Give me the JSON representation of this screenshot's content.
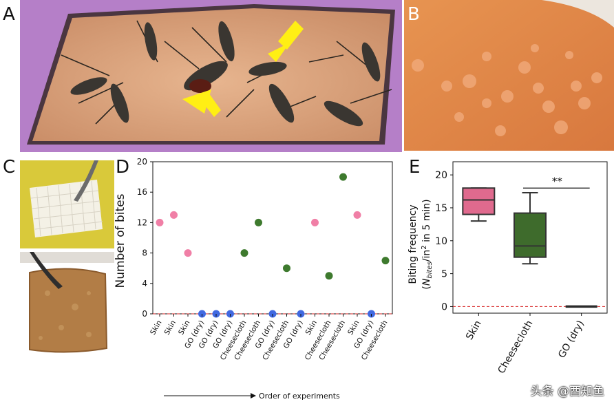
{
  "panels": {
    "a": {
      "letter": "A"
    },
    "b": {
      "letter": "B"
    },
    "c": {
      "letter": "C"
    },
    "d": {
      "letter": "D"
    },
    "e": {
      "letter": "E"
    }
  },
  "chart_data": [
    {
      "type": "scatter",
      "panel": "D",
      "ylabel": "Number of bites",
      "xlabel": "Order of experiments",
      "ylim": [
        0,
        20
      ],
      "yticks": [
        0,
        4,
        8,
        12,
        16,
        20
      ],
      "reference_line": 0,
      "categories": [
        "Skin",
        "Skin",
        "Skin",
        "GO (dry)",
        "GO (dry)",
        "GO (dry)",
        "Cheesecloth",
        "Cheesecloth",
        "GO (dry)",
        "Cheesecloth",
        "GO (dry)",
        "Skin",
        "Cheesecloth",
        "Cheesecloth",
        "Skin",
        "GO (dry)",
        "Cheesecloth"
      ],
      "values": [
        12,
        13,
        8,
        0,
        0,
        0,
        8,
        12,
        0,
        6,
        0,
        12,
        5,
        18,
        13,
        0,
        7
      ],
      "colors": {
        "Skin": "#f07fa6",
        "GO (dry)": "#4169e1",
        "Cheesecloth": "#3e7a2e"
      }
    },
    {
      "type": "box",
      "panel": "E",
      "ylabel_line1": "Biting frequency",
      "ylabel_line2": "(N_bites/in² in 5 min)",
      "ylim": [
        -1,
        22
      ],
      "yticks": [
        0,
        5,
        10,
        15,
        20
      ],
      "reference_line": 0,
      "significance": "**",
      "categories": [
        "Skin",
        "Cheesecloth",
        "GO (dry)"
      ],
      "boxes": [
        {
          "name": "Skin",
          "min": 13,
          "q1": 14,
          "median": 16.2,
          "q3": 18,
          "max": 18,
          "color": "#e06a8e"
        },
        {
          "name": "Cheesecloth",
          "min": 6.5,
          "q1": 7.5,
          "median": 9.2,
          "q3": 14.2,
          "max": 17.3,
          "color": "#3e6b2c"
        },
        {
          "name": "GO (dry)",
          "min": 0,
          "q1": 0,
          "median": 0,
          "q3": 0,
          "max": 0,
          "color": "#2b2b2b"
        }
      ]
    }
  ],
  "watermark": "头条 @酉知鱼"
}
